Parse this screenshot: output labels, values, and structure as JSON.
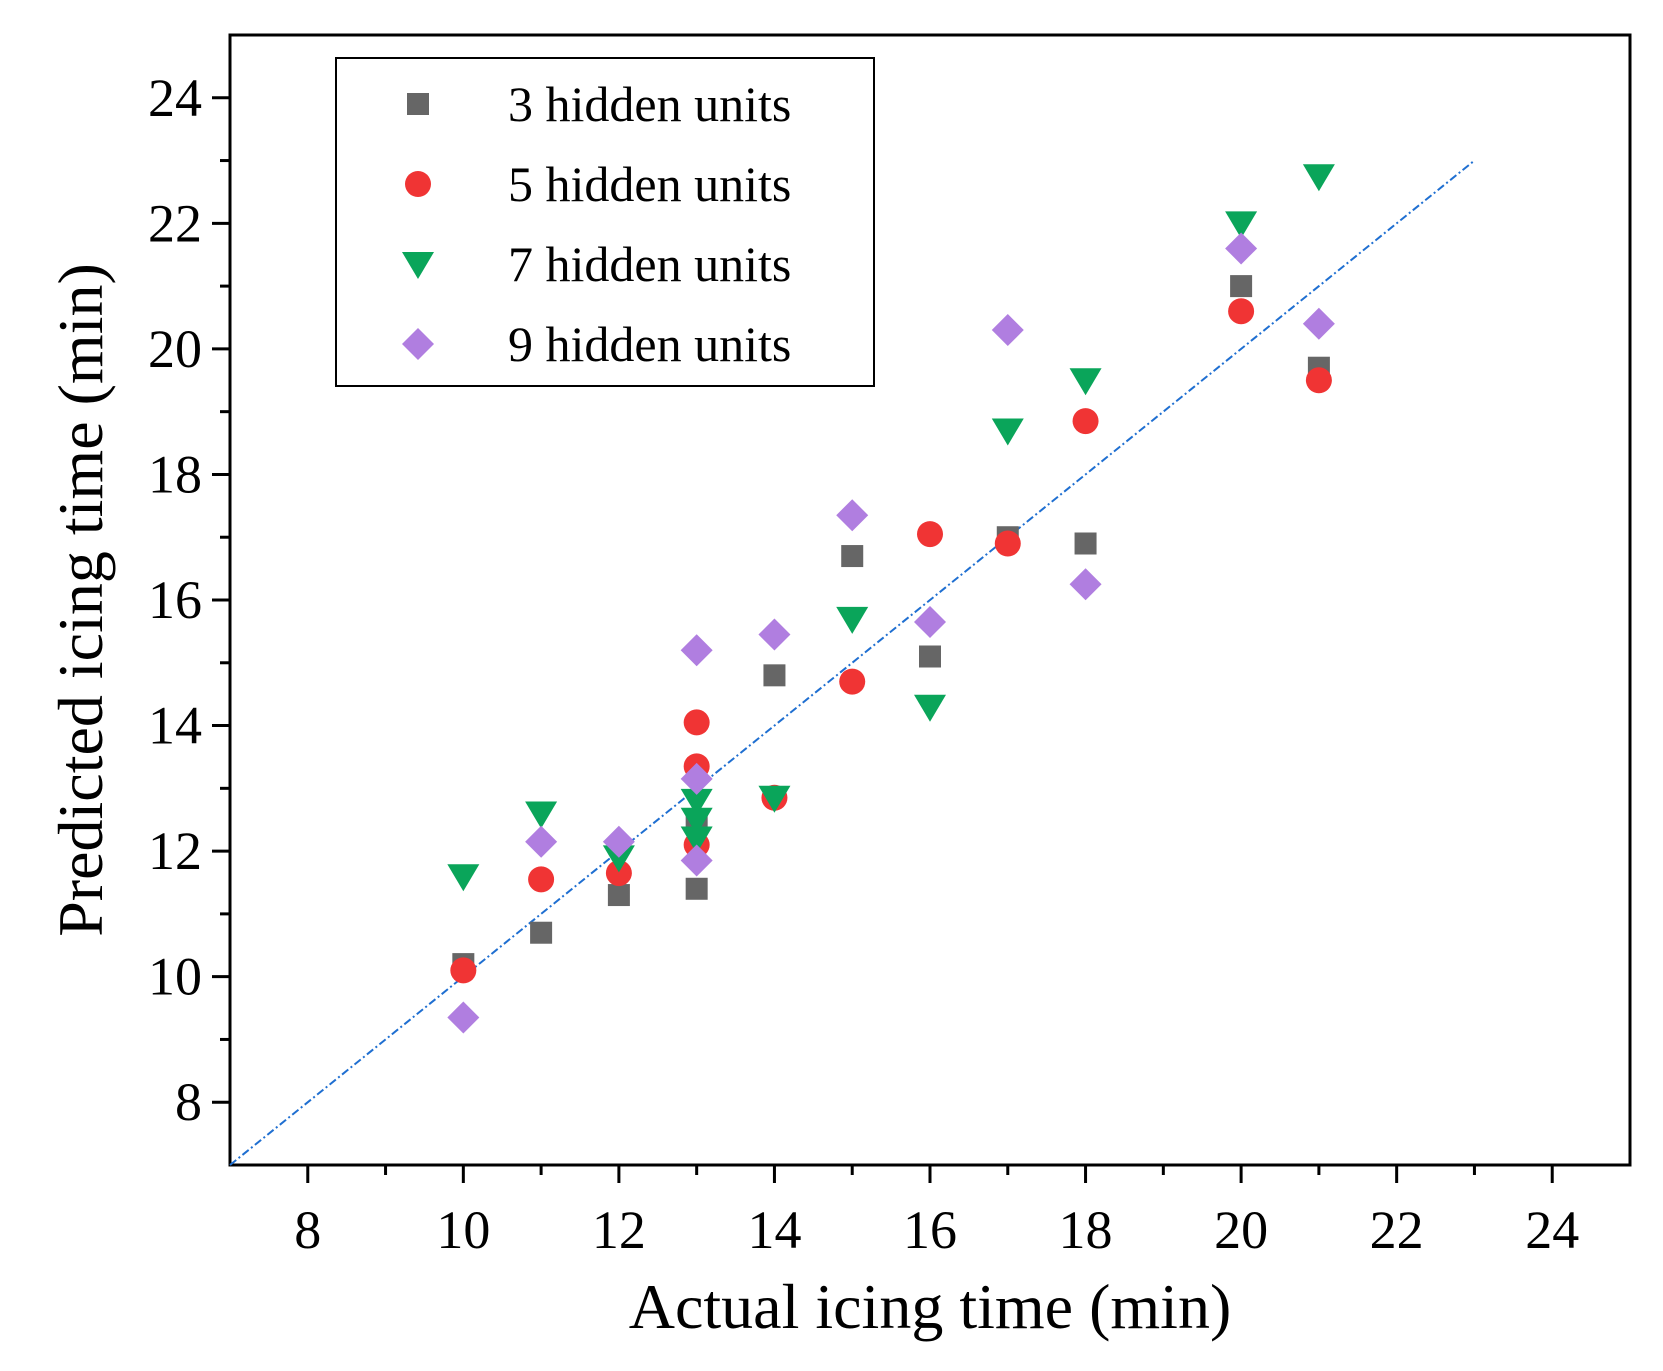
{
  "chart_data": {
    "type": "scatter",
    "title": "",
    "xlabel": "Actual icing time (min)",
    "ylabel": "Predicted icing time (min)",
    "xlim": [
      7,
      25
    ],
    "ylim": [
      7,
      25
    ],
    "xticks": [
      8,
      10,
      12,
      14,
      16,
      18,
      20,
      22,
      24
    ],
    "yticks": [
      8,
      10,
      12,
      14,
      16,
      18,
      20,
      22,
      24
    ],
    "legend_position": "top-left",
    "reference_line": {
      "from": [
        7,
        7
      ],
      "to": [
        23,
        23
      ],
      "style": "dash-dot",
      "color": "#1f6fd1"
    },
    "series": [
      {
        "name": "3 hidden units",
        "marker": "square",
        "color": "#666666",
        "x": [
          10,
          11,
          12,
          13,
          13,
          14,
          15,
          16,
          17,
          18,
          20,
          21
        ],
        "y": [
          10.2,
          10.7,
          11.3,
          11.4,
          12.5,
          14.8,
          16.7,
          15.1,
          17.0,
          16.9,
          21.0,
          19.7
        ]
      },
      {
        "name": "5 hidden units",
        "marker": "circle",
        "color": "#f03434",
        "x": [
          10,
          11,
          12,
          13,
          13,
          13,
          14,
          15,
          16,
          17,
          18,
          20,
          21
        ],
        "y": [
          10.1,
          11.55,
          11.65,
          14.05,
          13.35,
          12.1,
          12.85,
          14.7,
          17.05,
          16.9,
          18.85,
          20.6,
          19.5
        ]
      },
      {
        "name": "7 hidden units",
        "marker": "triangle-down",
        "color": "#0aa55a",
        "x": [
          10,
          11,
          12,
          13,
          13,
          13,
          14,
          15,
          16,
          17,
          18,
          20,
          21
        ],
        "y": [
          11.6,
          12.6,
          11.9,
          12.8,
          12.5,
          12.2,
          12.85,
          15.7,
          14.3,
          18.7,
          19.5,
          22.0,
          22.75
        ]
      },
      {
        "name": "9 hidden units",
        "marker": "diamond",
        "color": "#b07ee0",
        "x": [
          10,
          11,
          12,
          13,
          13,
          13,
          14,
          15,
          16,
          17,
          18,
          20,
          21
        ],
        "y": [
          9.35,
          12.15,
          12.15,
          15.2,
          13.15,
          11.85,
          15.45,
          17.35,
          15.65,
          20.3,
          16.25,
          21.6,
          20.4
        ]
      }
    ]
  }
}
